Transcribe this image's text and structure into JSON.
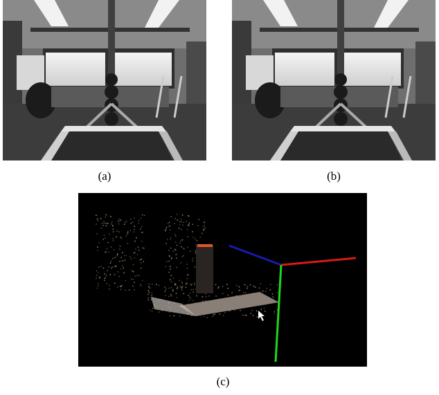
{
  "subfigures": [
    {
      "label": "(a)"
    },
    {
      "label": "(b)"
    },
    {
      "label": "(c)"
    }
  ]
}
